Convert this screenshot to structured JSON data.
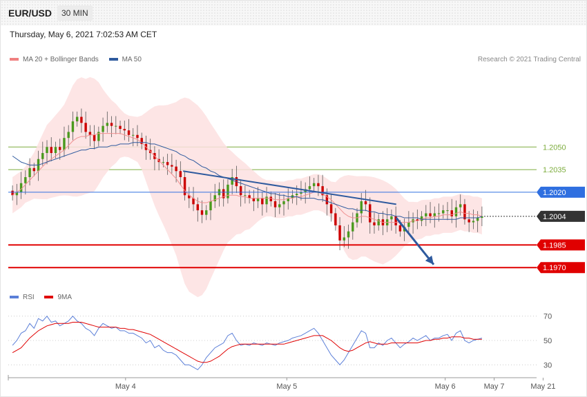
{
  "header": {
    "symbol": "EUR/USD",
    "timeframe": "30 MIN",
    "datetime": "Thursday, May 6, 2021 7:02:53 AM CET"
  },
  "legend_main": [
    {
      "label": "MA 20 + Bollinger Bands",
      "color": "#f08080"
    },
    {
      "label": "MA 50",
      "color": "#2e5a9e"
    }
  ],
  "legend_rsi": [
    {
      "label": "RSI",
      "color": "#5b7fd8"
    },
    {
      "label": "9MA",
      "color": "#e00000"
    }
  ],
  "credit": "Research © 2021 Trading Central",
  "colors": {
    "up": "#4a9a1e",
    "down": "#cc0000",
    "band": "#fde0e0",
    "ma20": "#f09090",
    "ma50": "#2e5a9e",
    "trend": "#2e5a9e"
  },
  "chart_data": [
    {
      "type": "candlestick",
      "title": "EUR/USD 30 MIN",
      "x_ticks": [
        "May 4",
        "May 5",
        "May 6",
        "May 7",
        "May 21"
      ],
      "ylim": [
        1.1955,
        1.2105
      ],
      "levels": [
        {
          "value": "1.2050",
          "kind": "resistance",
          "color": "#7cac3c"
        },
        {
          "value": "1.2035",
          "kind": "resistance",
          "color": "#7cac3c"
        },
        {
          "value": "1.2020",
          "kind": "resistance",
          "color": "#2f6fe0"
        },
        {
          "value": "1.2004",
          "kind": "last",
          "color": "#333333"
        },
        {
          "value": "1.1985",
          "kind": "support",
          "color": "#e00000"
        },
        {
          "value": "1.1970",
          "kind": "support",
          "color": "#e00000"
        }
      ],
      "trendline": [
        [
          0.3,
          1.2034
        ],
        [
          0.67,
          1.2012
        ]
      ],
      "forecast_arrow": [
        [
          0.67,
          1.2003
        ],
        [
          0.735,
          1.1972
        ]
      ],
      "close": [
        1.2018,
        1.202,
        1.2026,
        1.203,
        1.2036,
        1.2034,
        1.2042,
        1.2046,
        1.205,
        1.2046,
        1.205,
        1.2048,
        1.2056,
        1.206,
        1.2067,
        1.207,
        1.2066,
        1.206,
        1.2058,
        1.2054,
        1.206,
        1.2064,
        1.2066,
        1.2064,
        1.2064,
        1.2062,
        1.2061,
        1.2058,
        1.2058,
        1.2056,
        1.2052,
        1.2048,
        1.2046,
        1.2042,
        1.204,
        1.204,
        1.2038,
        1.2037,
        1.2034,
        1.203,
        1.2018,
        1.2016,
        1.2012,
        1.2008,
        1.2005,
        1.2008,
        1.2014,
        1.2018,
        1.2022,
        1.2016,
        1.2025,
        1.203,
        1.2024,
        1.2018,
        1.2018,
        1.2016,
        1.2014,
        1.2016,
        1.2012,
        1.2017,
        1.2014,
        1.201,
        1.2012,
        1.2014,
        1.2016,
        1.2018,
        1.2019,
        1.202,
        1.2022,
        1.2024,
        1.2026,
        1.2024,
        1.2018,
        1.2012,
        1.2006,
        1.1998,
        1.1988,
        1.199,
        1.1994,
        1.2,
        1.2006,
        1.2014,
        1.2012,
        1.2,
        1.1998,
        1.2002,
        1.1998,
        1.2002,
        1.2004,
        1.1998,
        1.1994,
        1.1997,
        1.2,
        1.2002,
        1.2001,
        1.2004,
        1.2006,
        1.2004,
        1.2006,
        1.2006,
        1.2008,
        1.2008,
        1.2004,
        1.201,
        1.2012,
        1.2002,
        1.2,
        1.2001,
        1.2003,
        1.2004
      ],
      "ma20": [
        1.2018,
        1.202,
        1.2022,
        1.2025,
        1.2028,
        1.2031,
        1.2034,
        1.2037,
        1.204,
        1.2042,
        1.2044,
        1.2046,
        1.2048,
        1.2051,
        1.2054,
        1.2056,
        1.2057,
        1.2057,
        1.2058,
        1.2058,
        1.2059,
        1.2059,
        1.2059,
        1.2059,
        1.2059,
        1.2059,
        1.2058,
        1.2057,
        1.2056,
        1.2055,
        1.2053,
        1.205,
        1.2047,
        1.2044,
        1.2041,
        1.2038,
        1.2035,
        1.2032,
        1.2029,
        1.2025,
        1.2021,
        1.2018,
        1.2016,
        1.2014,
        1.2013,
        1.2013,
        1.2014,
        1.2015,
        1.2016,
        1.2017,
        1.2018,
        1.2018,
        1.2018,
        1.2017,
        1.2017,
        1.2016,
        1.2016,
        1.2016,
        1.2016,
        1.2016,
        1.2016,
        1.2015,
        1.2015,
        1.2015,
        1.2016,
        1.2016,
        1.2017,
        1.2017,
        1.2018,
        1.2019,
        1.202,
        1.202,
        1.2019,
        1.2017,
        1.2015,
        1.2012,
        1.2009,
        1.2006,
        1.2004,
        1.2003,
        1.2003,
        1.2004,
        1.2004,
        1.2003,
        1.2002,
        1.2001,
        1.2,
        1.2,
        1.2,
        1.2,
        1.2,
        1.2,
        1.2,
        1.2001,
        1.2001,
        1.2002,
        1.2003,
        1.2003,
        1.2004,
        1.2004,
        1.2005,
        1.2005,
        1.2005,
        1.2006,
        1.2007,
        1.2006,
        1.2006,
        1.2005,
        1.2005,
        1.2004
      ],
      "ma50": [
        1.2044,
        1.2042,
        1.204,
        1.2039,
        1.2038,
        1.2038,
        1.2038,
        1.2039,
        1.204,
        1.2041,
        1.2042,
        1.2043,
        1.2044,
        1.2045,
        1.2046,
        1.2047,
        1.2048,
        1.2048,
        1.2049,
        1.2049,
        1.205,
        1.205,
        1.205,
        1.2051,
        1.2051,
        1.2052,
        1.2052,
        1.2052,
        1.2053,
        1.2053,
        1.2053,
        1.2053,
        1.2052,
        1.2052,
        1.2051,
        1.205,
        1.2049,
        1.2048,
        1.2047,
        1.2045,
        1.2044,
        1.2042,
        1.2041,
        1.2039,
        1.2037,
        1.2036,
        1.2034,
        1.2033,
        1.2031,
        1.203,
        1.2029,
        1.2028,
        1.2027,
        1.2026,
        1.2025,
        1.2024,
        1.2023,
        1.2022,
        1.2021,
        1.202,
        1.2019,
        1.2019,
        1.2018,
        1.2018,
        1.2017,
        1.2017,
        1.2017,
        1.2016,
        1.2016,
        1.2016,
        1.2016,
        1.2015,
        1.2015,
        1.2014,
        1.2013,
        1.2012,
        1.2011,
        1.201,
        1.2009,
        1.2009,
        1.2008,
        1.2008,
        1.2008,
        1.2007,
        1.2007,
        1.2006,
        1.2006,
        1.2005,
        1.2005,
        1.2004,
        1.2004,
        1.2003,
        1.2003,
        1.2003,
        1.2003,
        1.2002,
        1.2002,
        1.2002,
        1.2002,
        1.2002,
        1.2002,
        1.2002,
        1.2002,
        1.2002,
        1.2003,
        1.2003,
        1.2003,
        1.2003,
        1.2003,
        1.2004
      ]
    },
    {
      "type": "line",
      "title": "RSI",
      "y_ticks": [
        "70",
        "50",
        "30"
      ],
      "ylim": [
        20,
        80
      ],
      "series": [
        {
          "name": "RSI",
          "values": [
            46,
            50,
            56,
            58,
            64,
            60,
            68,
            66,
            70,
            65,
            66,
            62,
            64,
            66,
            70,
            66,
            64,
            60,
            58,
            54,
            60,
            64,
            62,
            60,
            61,
            58,
            58,
            56,
            56,
            54,
            52,
            48,
            50,
            44,
            46,
            42,
            40,
            40,
            38,
            34,
            30,
            30,
            28,
            26,
            30,
            36,
            40,
            44,
            46,
            48,
            54,
            56,
            50,
            46,
            47,
            46,
            48,
            47,
            46,
            48,
            47,
            46,
            48,
            49,
            50,
            52,
            53,
            54,
            56,
            58,
            60,
            56,
            50,
            44,
            38,
            34,
            30,
            34,
            40,
            46,
            52,
            58,
            56,
            44,
            44,
            48,
            46,
            50,
            52,
            48,
            44,
            47,
            49,
            52,
            50,
            52,
            54,
            50,
            52,
            52,
            54,
            55,
            50,
            56,
            58,
            50,
            48,
            50,
            51,
            52
          ]
        },
        {
          "name": "9MA",
          "values": [
            40,
            42,
            44,
            48,
            52,
            55,
            58,
            60,
            62,
            63,
            64,
            64,
            64,
            64,
            65,
            65,
            65,
            64,
            63,
            62,
            61,
            61,
            61,
            61,
            61,
            60,
            60,
            59,
            59,
            58,
            57,
            56,
            55,
            53,
            51,
            49,
            47,
            45,
            43,
            41,
            39,
            37,
            35,
            33,
            32,
            32,
            33,
            35,
            37,
            40,
            43,
            45,
            46,
            47,
            47,
            47,
            47,
            47,
            47,
            47,
            47,
            47,
            47,
            47,
            48,
            49,
            50,
            51,
            52,
            53,
            54,
            54,
            54,
            52,
            50,
            47,
            44,
            42,
            41,
            42,
            44,
            46,
            48,
            49,
            48,
            47,
            47,
            47,
            48,
            48,
            48,
            48,
            48,
            48,
            48,
            49,
            50,
            50,
            51,
            51,
            52,
            52,
            53,
            53,
            53,
            52,
            52,
            51,
            51,
            51
          ]
        }
      ]
    }
  ]
}
